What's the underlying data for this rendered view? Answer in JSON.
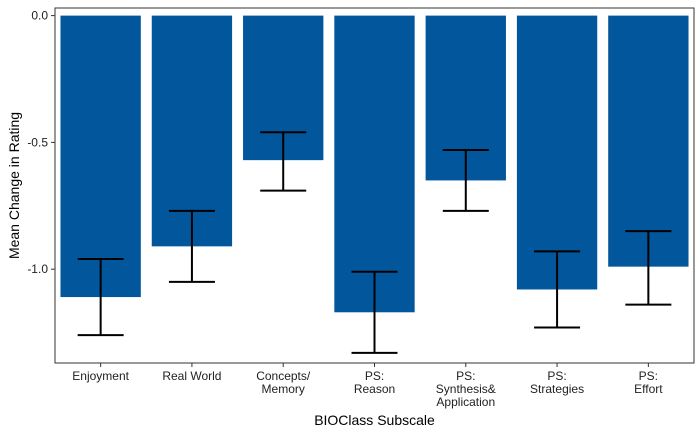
{
  "chart_data": {
    "type": "bar",
    "xlabel": "BIOClass Subscale",
    "ylabel": "Mean Change in Rating",
    "ylim": [
      -1.37,
      0.03
    ],
    "yticks": [
      0.0,
      -0.5,
      -1.0
    ],
    "ytick_labels": [
      "0.0",
      "-0.5",
      "-1.0"
    ],
    "categories": [
      [
        "Enjoyment"
      ],
      [
        "Real World"
      ],
      [
        "Concepts/",
        "Memory"
      ],
      [
        "PS:",
        "Reason"
      ],
      [
        "PS:",
        "Synthesis&",
        "Application"
      ],
      [
        "PS:",
        "Strategies"
      ],
      [
        "PS:",
        "Effort"
      ]
    ],
    "values": [
      -1.11,
      -0.91,
      -0.57,
      -1.17,
      -0.65,
      -1.08,
      -0.99
    ],
    "error_low": [
      -1.26,
      -1.05,
      -0.69,
      -1.33,
      -0.77,
      -1.23,
      -1.14
    ],
    "error_high": [
      -0.96,
      -0.77,
      -0.46,
      -1.01,
      -0.53,
      -0.93,
      -0.85
    ],
    "bar_color": "#02569b",
    "error_bar_color": "#000000",
    "grid": false,
    "legend": "none"
  }
}
